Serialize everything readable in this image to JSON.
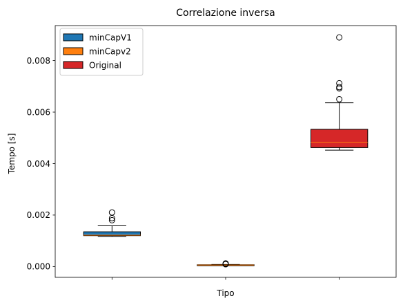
{
  "chart_data": {
    "type": "boxplot",
    "title": "Correlazione inversa",
    "xlabel": "Tipo",
    "ylabel": "Tempo [s]",
    "ylim": [
      -0.00042,
      0.00936
    ],
    "yticks": [
      0.0,
      0.002,
      0.004,
      0.006,
      0.008
    ],
    "ytick_labels": [
      "0.000",
      "0.002",
      "0.004",
      "0.006",
      "0.008"
    ],
    "median_color": "#ff7f0e",
    "legend": {
      "location": "upper left",
      "entries": [
        {
          "label": "minCapV1",
          "color": "#1f77b4"
        },
        {
          "label": "minCapv2",
          "color": "#ff7f0e"
        },
        {
          "label": "Original",
          "color": "#d62728"
        }
      ]
    },
    "series": [
      {
        "name": "minCapV1",
        "color": "#1f77b4",
        "whislo": 0.00117,
        "q1": 0.0012,
        "med": 0.00122,
        "q3": 0.00135,
        "whishi": 0.00158,
        "fliers": [
          0.0018,
          0.00188,
          0.0021
        ]
      },
      {
        "name": "minCapv2",
        "color": "#ff7f0e",
        "whislo": 4e-05,
        "q1": 5e-05,
        "med": 6e-05,
        "q3": 7e-05,
        "whishi": 8e-05,
        "fliers": [
          9e-05,
          0.00011,
          0.00012
        ]
      },
      {
        "name": "Original",
        "color": "#d62728",
        "whislo": 0.00452,
        "q1": 0.00462,
        "med": 0.00482,
        "q3": 0.00533,
        "whishi": 0.00636,
        "fliers": [
          0.0065,
          0.00692,
          0.00697,
          0.00712,
          0.0089
        ]
      }
    ]
  }
}
